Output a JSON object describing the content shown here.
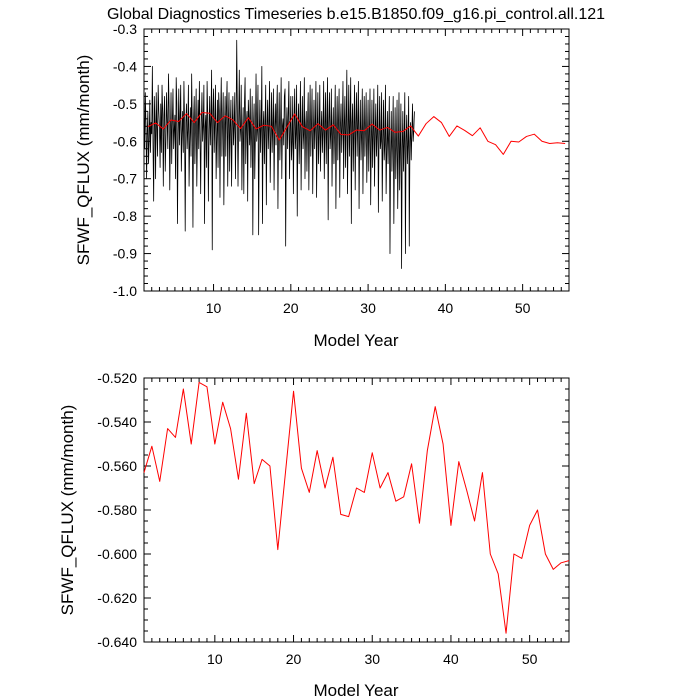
{
  "title": "Global Diagnostics Timeseries b.e15.B1850.f09_g16.pi_control.all.121",
  "colors": {
    "monthly": "#000000",
    "annual": "#ff0000",
    "axis": "#000000"
  },
  "chart_data": [
    {
      "type": "line",
      "xlabel": "Model Year",
      "ylabel": "SFWF_QFLUX (mm/month)",
      "xlim": [
        1,
        56
      ],
      "ylim": [
        -1.0,
        -0.3
      ],
      "x_ticks": [
        10,
        20,
        30,
        40,
        50
      ],
      "x_tick_labels": [
        "10",
        "20",
        "30",
        "40",
        "50"
      ],
      "y_ticks": [
        -1.0,
        -0.9,
        -0.8,
        -0.7,
        -0.6,
        -0.5,
        -0.4,
        -0.3
      ],
      "y_tick_labels": [
        "-1.0",
        "-0.9",
        "-0.8",
        "-0.7",
        "-0.6",
        "-0.5",
        "-0.4",
        "-0.3"
      ],
      "series": [
        {
          "name": "monthly",
          "color": "#000000",
          "x_start": 1.0,
          "x_step": 0.08333,
          "values": [
            -0.52,
            -0.62,
            -0.47,
            -0.55,
            -0.7,
            -0.58,
            -0.52,
            -0.66,
            -0.6,
            -0.49,
            -0.63,
            -0.55,
            -0.58,
            -0.4,
            -0.61,
            -0.76,
            -0.48,
            -0.55,
            -0.7,
            -0.47,
            -0.56,
            -0.64,
            -0.45,
            -0.52,
            -0.56,
            -0.67,
            -0.5,
            -0.63,
            -0.45,
            -0.52,
            -0.72,
            -0.53,
            -0.48,
            -0.68,
            -0.6,
            -0.47,
            -0.55,
            -0.62,
            -0.42,
            -0.51,
            -0.73,
            -0.58,
            -0.47,
            -0.66,
            -0.55,
            -0.46,
            -0.62,
            -0.57,
            -0.53,
            -0.7,
            -0.43,
            -0.5,
            -0.82,
            -0.58,
            -0.46,
            -0.61,
            -0.54,
            -0.45,
            -0.68,
            -0.58,
            -0.52,
            -0.63,
            -0.44,
            -0.55,
            -0.84,
            -0.55,
            -0.5,
            -0.62,
            -0.57,
            -0.45,
            -0.72,
            -0.6,
            -0.51,
            -0.64,
            -0.42,
            -0.56,
            -0.83,
            -0.54,
            -0.48,
            -0.66,
            -0.56,
            -0.46,
            -0.72,
            -0.58,
            -0.49,
            -0.62,
            -0.44,
            -0.58,
            -0.74,
            -0.55,
            -0.47,
            -0.6,
            -0.56,
            -0.45,
            -0.82,
            -0.56,
            -0.53,
            -0.67,
            -0.44,
            -0.53,
            -0.76,
            -0.57,
            -0.48,
            -0.61,
            -0.54,
            -0.41,
            -0.89,
            -0.52,
            -0.46,
            -0.63,
            -0.55,
            -0.45,
            -0.7,
            -0.59,
            -0.49,
            -0.67,
            -0.47,
            -0.52,
            -0.75,
            -0.53,
            -0.43,
            -0.64,
            -0.55,
            -0.47,
            -0.77,
            -0.57,
            -0.48,
            -0.64,
            -0.51,
            -0.44,
            -0.72,
            -0.55,
            -0.47,
            -0.68,
            -0.56,
            -0.49,
            -0.72,
            -0.56,
            -0.48,
            -0.61,
            -0.56,
            -0.47,
            -0.7,
            -0.55,
            -0.33,
            -0.52,
            -0.72,
            -0.55,
            -0.41,
            -0.6,
            -0.57,
            -0.45,
            -0.73,
            -0.58,
            -0.51,
            -0.74,
            -0.5,
            -0.43,
            -0.66,
            -0.55,
            -0.52,
            -0.76,
            -0.49,
            -0.54,
            -0.61,
            -0.46,
            -0.67,
            -0.58,
            -0.48,
            -0.85,
            -0.56,
            -0.5,
            -0.7,
            -0.58,
            -0.42,
            -0.6,
            -0.57,
            -0.45,
            -0.85,
            -0.58,
            -0.49,
            -0.63,
            -0.56,
            -0.4,
            -0.82,
            -0.56,
            -0.52,
            -0.66,
            -0.55,
            -0.45,
            -0.77,
            -0.56,
            -0.49,
            -0.62,
            -0.56,
            -0.44,
            -0.71,
            -0.59,
            -0.47,
            -0.63,
            -0.56,
            -0.46,
            -0.73,
            -0.56,
            -0.5,
            -0.61,
            -0.52,
            -0.45,
            -0.78,
            -0.57,
            -0.47,
            -0.65,
            -0.57,
            -0.43,
            -0.7,
            -0.56,
            -0.54,
            -0.61,
            -0.48,
            -0.46,
            -0.88,
            -0.58,
            -0.51,
            -0.62,
            -0.53,
            -0.44,
            -0.7,
            -0.58,
            -0.48,
            -0.65,
            -0.6,
            -0.48,
            -0.74,
            -0.56,
            -0.46,
            -0.62,
            -0.58,
            -0.45,
            -0.8,
            -0.56,
            -0.5,
            -0.66,
            -0.56,
            -0.44,
            -0.73,
            -0.57,
            -0.48,
            -0.62,
            -0.58,
            -0.43,
            -0.7,
            -0.56,
            -0.52,
            -0.68,
            -0.55,
            -0.47,
            -0.73,
            -0.57,
            -0.45,
            -0.64,
            -0.56,
            -0.46,
            -0.74,
            -0.58,
            -0.49,
            -0.62,
            -0.56,
            -0.44,
            -0.75,
            -0.57,
            -0.47,
            -0.66,
            -0.58,
            -0.45,
            -0.68,
            -0.57,
            -0.52,
            -0.63,
            -0.57,
            -0.44,
            -0.7,
            -0.56,
            -0.47,
            -0.66,
            -0.56,
            -0.43,
            -0.81,
            -0.55,
            -0.47,
            -0.62,
            -0.58,
            -0.46,
            -0.72,
            -0.57,
            -0.51,
            -0.66,
            -0.57,
            -0.45,
            -0.78,
            -0.57,
            -0.48,
            -0.65,
            -0.55,
            -0.46,
            -0.75,
            -0.56,
            -0.5,
            -0.63,
            -0.56,
            -0.44,
            -0.7,
            -0.56,
            -0.48,
            -0.67,
            -0.55,
            -0.41,
            -0.74,
            -0.57,
            -0.45,
            -0.64,
            -0.55,
            -0.43,
            -0.82,
            -0.55,
            -0.5,
            -0.68,
            -0.56,
            -0.45,
            -0.73,
            -0.55,
            -0.47,
            -0.64,
            -0.55,
            -0.44,
            -0.78,
            -0.58,
            -0.49,
            -0.65,
            -0.58,
            -0.46,
            -0.74,
            -0.57,
            -0.48,
            -0.64,
            -0.57,
            -0.47,
            -0.71,
            -0.59,
            -0.49,
            -0.68,
            -0.58,
            -0.46,
            -0.77,
            -0.6,
            -0.49,
            -0.67,
            -0.58,
            -0.46,
            -0.72,
            -0.58,
            -0.5,
            -0.64,
            -0.58,
            -0.45,
            -0.79,
            -0.59,
            -0.48,
            -0.62,
            -0.6,
            -0.47,
            -0.76,
            -0.6,
            -0.49,
            -0.65,
            -0.61,
            -0.45,
            -0.74,
            -0.62,
            -0.52,
            -0.66,
            -0.58,
            -0.48,
            -0.9,
            -0.63,
            -0.52,
            -0.68,
            -0.6,
            -0.48,
            -0.82,
            -0.62,
            -0.51,
            -0.7,
            -0.61,
            -0.49,
            -0.78,
            -0.62,
            -0.47,
            -0.73,
            -0.61,
            -0.5,
            -0.94,
            -0.62,
            -0.52,
            -0.68,
            -0.6,
            -0.47,
            -0.9,
            -0.6,
            -0.53,
            -0.66,
            -0.61,
            -0.48,
            -0.88,
            -0.6,
            -0.55,
            -0.65,
            -0.58,
            -0.5,
            -0.6,
            -0.57,
            -0.52
          ]
        },
        {
          "name": "annual",
          "color": "#ff0000",
          "x": [
            1.5,
            2.5,
            3.5,
            4.5,
            5.5,
            6.5,
            7.5,
            8.5,
            9.5,
            10.5,
            11.5,
            12.5,
            13.5,
            14.5,
            15.5,
            16.5,
            17.5,
            18.5,
            19.5,
            20.5,
            21.5,
            22.5,
            23.5,
            24.5,
            25.5,
            26.5,
            27.5,
            28.5,
            29.5,
            30.5,
            31.5,
            32.5,
            33.5,
            34.5,
            35.5,
            36.5,
            37.5,
            38.5,
            39.5,
            40.5,
            41.5,
            42.5,
            43.5,
            44.5,
            45.5,
            46.5,
            47.5,
            48.5,
            49.5,
            50.5,
            51.5,
            52.5,
            53.5,
            54.5,
            55.5
          ],
          "values": [
            -0.561,
            -0.551,
            -0.567,
            -0.543,
            -0.547,
            -0.526,
            -0.55,
            -0.523,
            -0.525,
            -0.55,
            -0.532,
            -0.543,
            -0.566,
            -0.537,
            -0.567,
            -0.557,
            -0.56,
            -0.597,
            -0.562,
            -0.527,
            -0.561,
            -0.572,
            -0.553,
            -0.57,
            -0.556,
            -0.582,
            -0.583,
            -0.57,
            -0.572,
            -0.554,
            -0.57,
            -0.563,
            -0.576,
            -0.574,
            -0.559,
            -0.586,
            -0.553,
            -0.534,
            -0.55,
            -0.587,
            -0.559,
            -0.571,
            -0.585,
            -0.564,
            -0.6,
            -0.609,
            -0.635,
            -0.6,
            -0.602,
            -0.587,
            -0.581,
            -0.6,
            -0.606,
            -0.604,
            -0.606
          ]
        }
      ]
    },
    {
      "type": "line",
      "xlabel": "Model Year",
      "ylabel": "SFWF_QFLUX (mm/month)",
      "xlim": [
        1,
        55
      ],
      "ylim": [
        -0.64,
        -0.52
      ],
      "x_ticks": [
        10,
        20,
        30,
        40,
        50
      ],
      "x_tick_labels": [
        "10",
        "20",
        "30",
        "40",
        "50"
      ],
      "y_ticks": [
        -0.64,
        -0.62,
        -0.6,
        -0.58,
        -0.56,
        -0.54,
        -0.52
      ],
      "y_tick_labels": [
        "-0.640",
        "-0.620",
        "-0.600",
        "-0.580",
        "-0.560",
        "-0.540",
        "-0.520"
      ],
      "series": [
        {
          "name": "annual",
          "color": "#ff0000",
          "x": [
            1.0,
            2.0,
            3.0,
            4.0,
            5.0,
            6.0,
            7.0,
            8.0,
            9.0,
            10.0,
            11.0,
            12.0,
            13.0,
            14.0,
            15.0,
            16.0,
            17.0,
            18.0,
            19.0,
            20.0,
            21.0,
            22.0,
            23.0,
            24.0,
            25.0,
            26.0,
            27.0,
            28.0,
            29.0,
            30.0,
            31.0,
            32.0,
            33.0,
            34.0,
            35.0,
            36.0,
            37.0,
            38.0,
            39.0,
            40.0,
            41.0,
            42.0,
            43.0,
            44.0,
            45.0,
            46.0,
            47.0,
            48.0,
            49.0,
            50.0,
            51.0,
            52.0,
            53.0,
            54.0,
            55.0
          ],
          "values": [
            -0.563,
            -0.551,
            -0.567,
            -0.543,
            -0.547,
            -0.525,
            -0.55,
            -0.522,
            -0.524,
            -0.55,
            -0.531,
            -0.543,
            -0.566,
            -0.536,
            -0.568,
            -0.557,
            -0.56,
            -0.598,
            -0.562,
            -0.526,
            -0.561,
            -0.572,
            -0.553,
            -0.57,
            -0.556,
            -0.582,
            -0.583,
            -0.57,
            -0.572,
            -0.554,
            -0.57,
            -0.563,
            -0.576,
            -0.574,
            -0.559,
            -0.586,
            -0.553,
            -0.533,
            -0.55,
            -0.587,
            -0.558,
            -0.571,
            -0.585,
            -0.563,
            -0.6,
            -0.609,
            -0.636,
            -0.6,
            -0.602,
            -0.587,
            -0.58,
            -0.6,
            -0.607,
            -0.604,
            -0.603
          ]
        }
      ]
    }
  ]
}
